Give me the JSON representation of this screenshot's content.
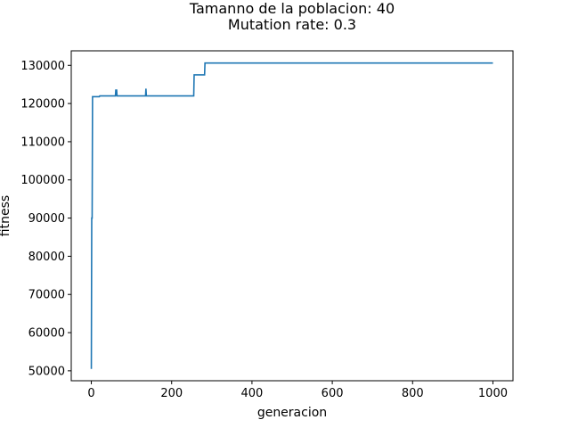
{
  "chart_data": {
    "type": "line",
    "title": "Tamanno de la poblacion: 40",
    "subtitle": "Mutation rate: 0.3",
    "xlabel": "generacion",
    "ylabel": "fitness",
    "xlim": [
      -50,
      1050
    ],
    "ylim": [
      47400,
      133800
    ],
    "xticks": [
      0,
      200,
      400,
      600,
      800,
      1000
    ],
    "yticks": [
      50000,
      60000,
      70000,
      80000,
      90000,
      100000,
      110000,
      120000,
      130000
    ],
    "grid": false,
    "line_color": "#1f77b4",
    "series": [
      {
        "points": [
          [
            0,
            50500
          ],
          [
            1,
            90000
          ],
          [
            2,
            90000
          ],
          [
            3,
            121800
          ],
          [
            20,
            121800
          ],
          [
            21,
            122000
          ],
          [
            60,
            122000
          ],
          [
            61,
            123700
          ],
          [
            62,
            122000
          ],
          [
            63,
            123700
          ],
          [
            64,
            122000
          ],
          [
            135,
            122000
          ],
          [
            136,
            123900
          ],
          [
            137,
            122000
          ],
          [
            255,
            122000
          ],
          [
            256,
            127500
          ],
          [
            282,
            127500
          ],
          [
            283,
            130600
          ],
          [
            1000,
            130600
          ]
        ]
      }
    ]
  }
}
